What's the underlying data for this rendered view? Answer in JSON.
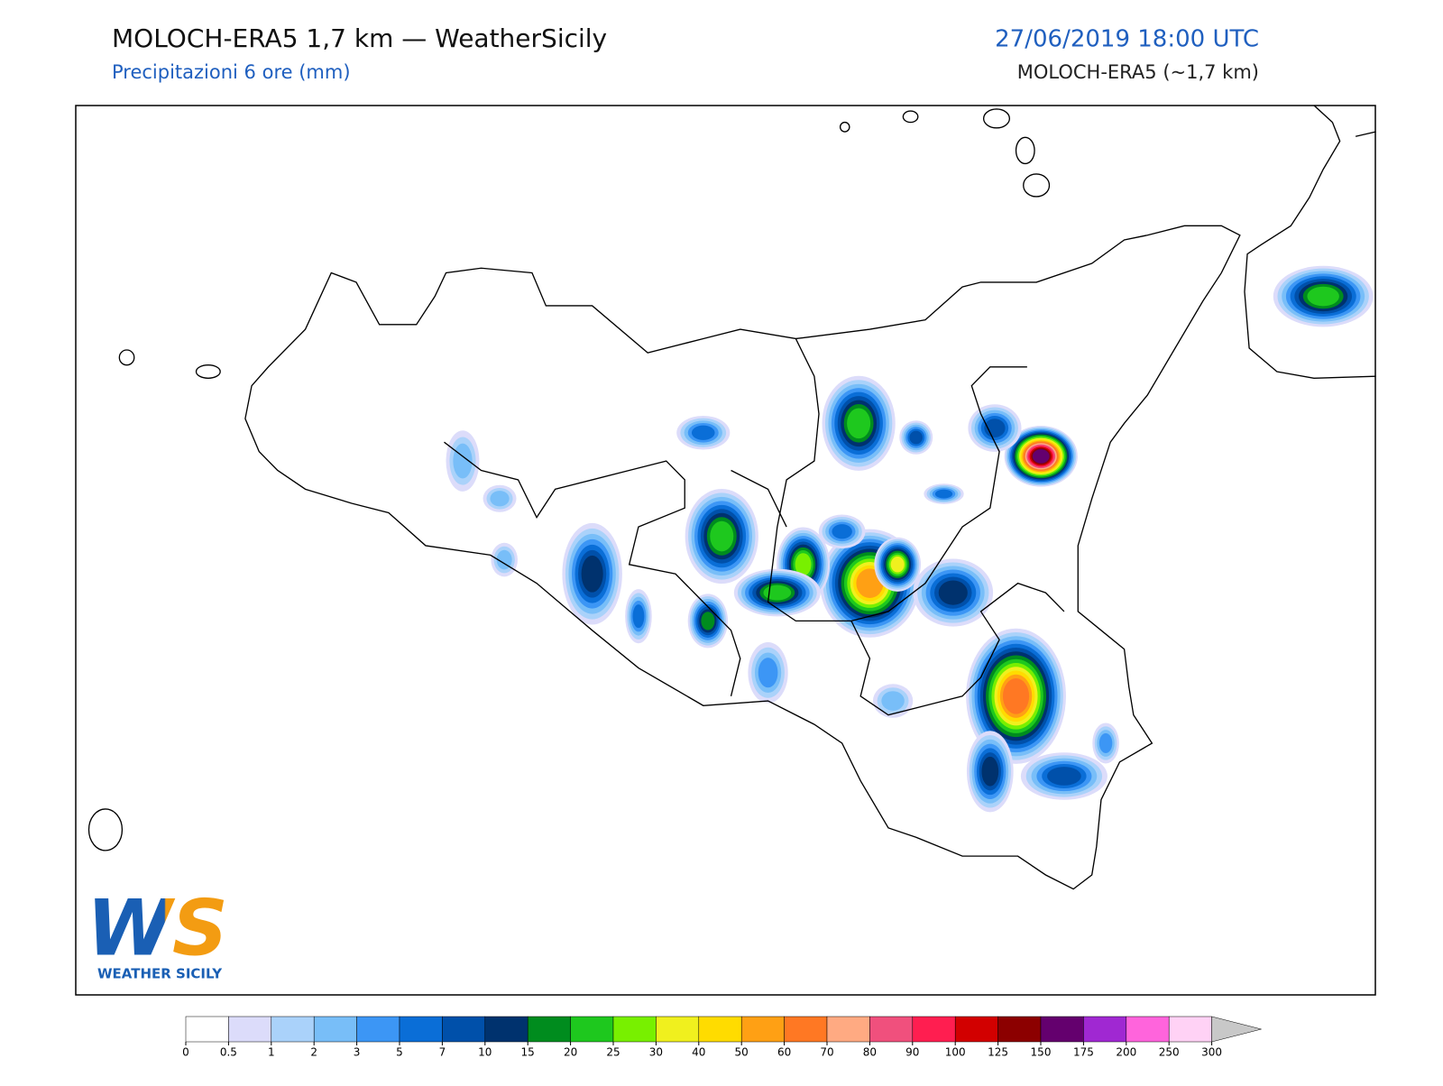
{
  "header": {
    "title": "MOLOCH-ERA5 1,7 km — WeatherSicily",
    "subtitle": "Precipitazioni 6 ore (mm)",
    "datetime": "27/06/2019 18:00 UTC",
    "model": "MOLOCH-ERA5 (~1,7 km)"
  },
  "logo": {
    "letters": "WS",
    "name": "WEATHER SICILY"
  },
  "colorbar": {
    "ticks": [
      0,
      0.5,
      1,
      2,
      3,
      5,
      7,
      10,
      15,
      20,
      25,
      30,
      40,
      50,
      60,
      70,
      80,
      90,
      100,
      125,
      150,
      175,
      200,
      250,
      300
    ],
    "colors": [
      "#ffffff",
      "#dcdcfa",
      "#aad2fa",
      "#78bef8",
      "#3c96f5",
      "#0a6ed7",
      "#0050aa",
      "#00326e",
      "#008c1e",
      "#1ec81e",
      "#78f000",
      "#f0f01e",
      "#ffdc00",
      "#ffa014",
      "#ff7823",
      "#ffaa82",
      "#f0507d",
      "#ff1e50",
      "#d20000",
      "#8c0000",
      "#64006e",
      "#a028d2",
      "#ff64dc",
      "#ffd2f5"
    ],
    "extend_color": "#c8c8c8"
  }
}
